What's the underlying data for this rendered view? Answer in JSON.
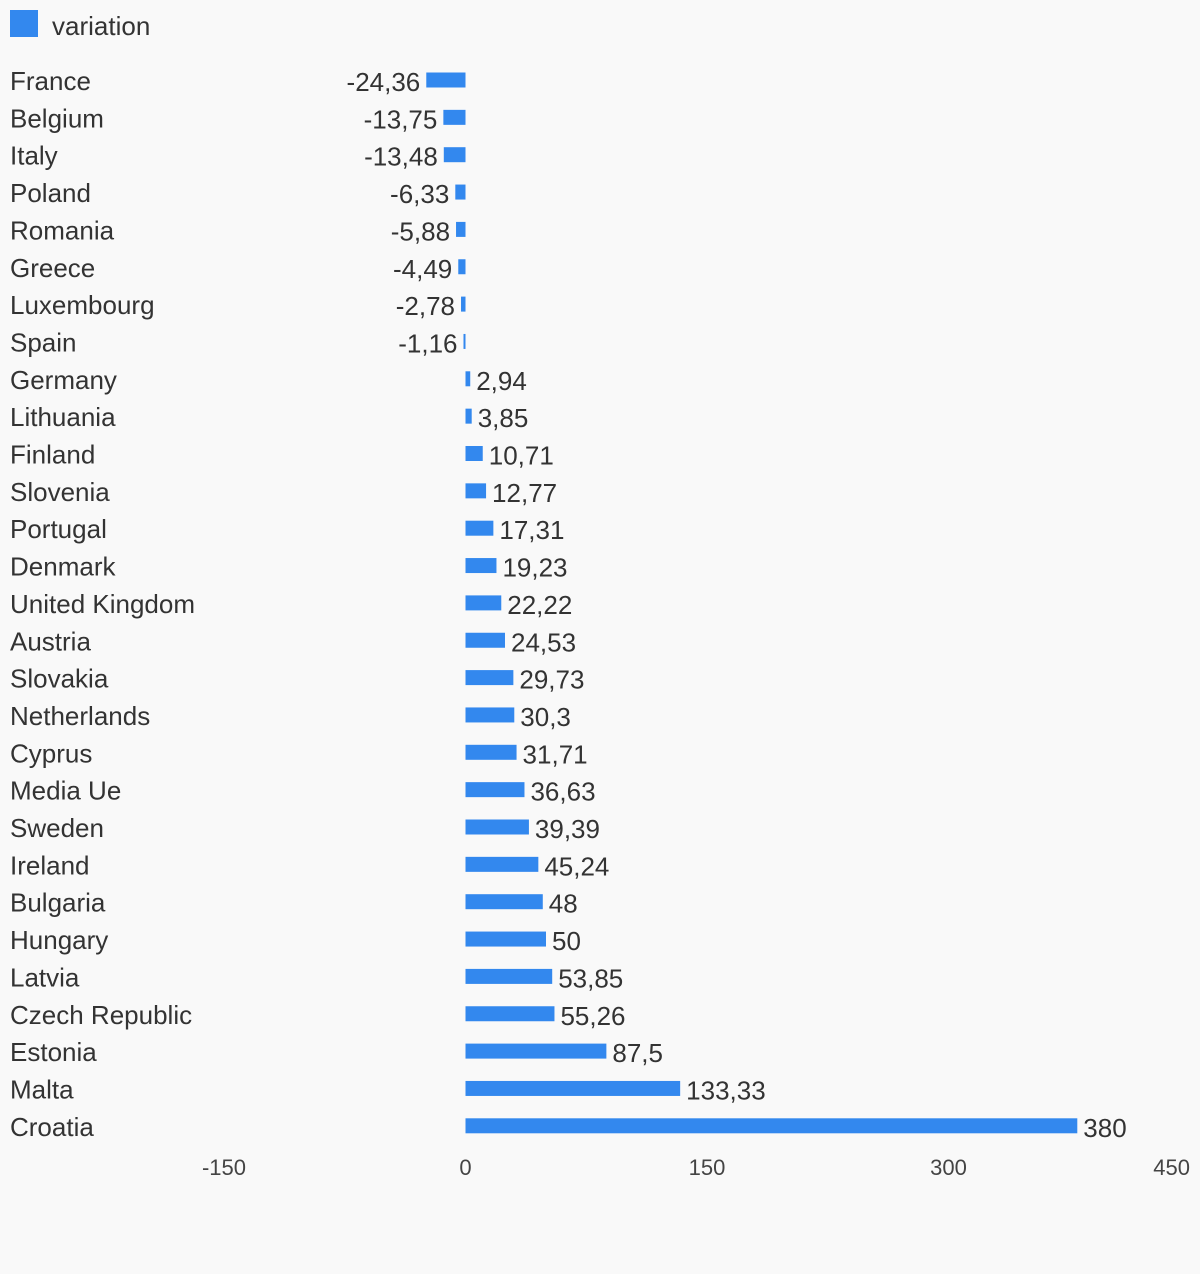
{
  "chart_data": {
    "type": "bar",
    "orientation": "horizontal",
    "legend": {
      "position": "top-left",
      "entries": [
        "variation"
      ]
    },
    "series": [
      {
        "name": "variation",
        "color": "#3388ee",
        "values": [
          -24.36,
          -13.75,
          -13.48,
          -6.33,
          -5.88,
          -4.49,
          -2.78,
          -1.16,
          2.94,
          3.85,
          10.71,
          12.77,
          17.31,
          19.23,
          22.22,
          24.53,
          29.73,
          30.3,
          31.71,
          36.63,
          39.39,
          45.24,
          48,
          50,
          53.85,
          55.26,
          87.5,
          133.33,
          380
        ],
        "value_labels": [
          "-24,36",
          "-13,75",
          "-13,48",
          "-6,33",
          "-5,88",
          "-4,49",
          "-2,78",
          "-1,16",
          "2,94",
          "3,85",
          "10,71",
          "12,77",
          "17,31",
          "19,23",
          "22,22",
          "24,53",
          "29,73",
          "30,3",
          "31,71",
          "36,63",
          "39,39",
          "45,24",
          "48",
          "50",
          "53,85",
          "55,26",
          "87,5",
          "133,33",
          "380"
        ]
      }
    ],
    "categories": [
      "France",
      "Belgium",
      "Italy",
      "Poland",
      "Romania",
      "Greece",
      "Luxembourg",
      "Spain",
      "Germany",
      "Lithuania",
      "Finland",
      "Slovenia",
      "Portugal",
      "Denmark",
      "United Kingdom",
      "Austria",
      "Slovakia",
      "Netherlands",
      "Cyprus",
      "Media Ue",
      "Sweden",
      "Ireland",
      "Bulgaria",
      "Hungary",
      "Latvia",
      "Czech Republic",
      "Estonia",
      "Malta",
      "Croatia"
    ],
    "xaxis": {
      "range": [
        -150,
        450
      ],
      "ticks": [
        -150,
        0,
        150,
        300,
        450
      ],
      "tick_labels": [
        "-150",
        "0",
        "150",
        "300",
        "450"
      ]
    },
    "grid": false
  }
}
